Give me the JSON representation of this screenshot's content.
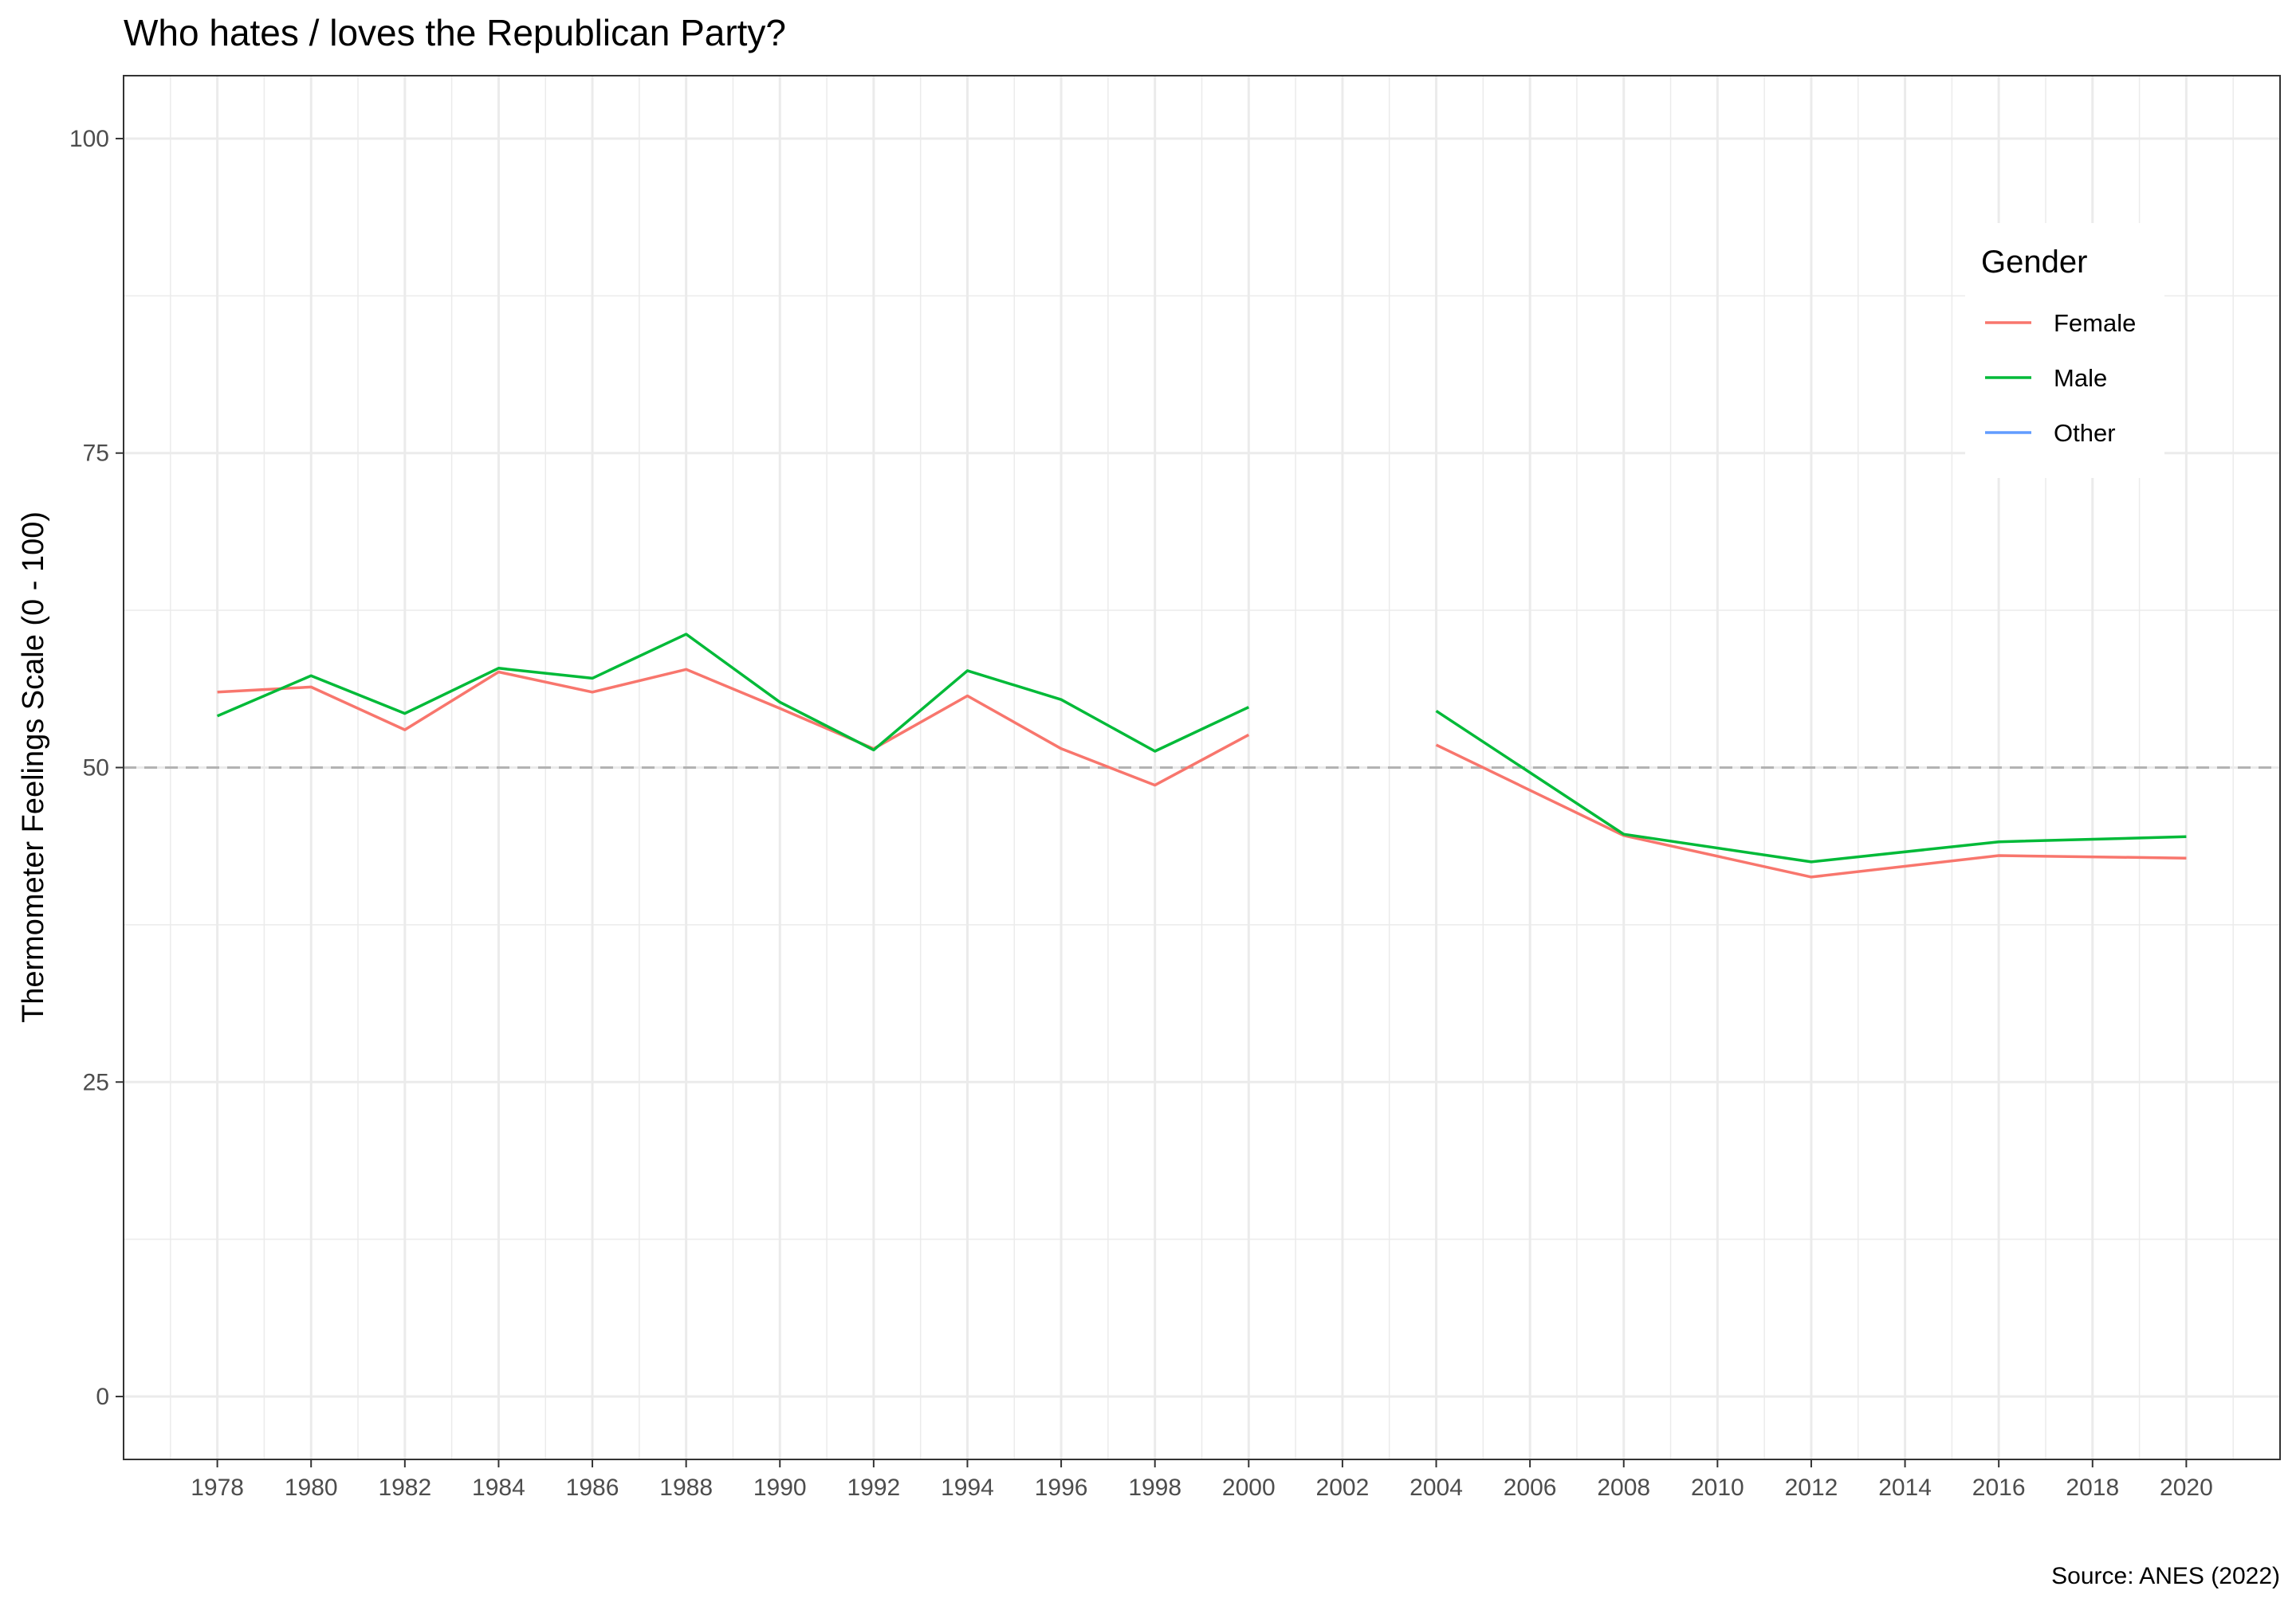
{
  "chart_data": {
    "type": "line",
    "title": "Who hates / loves the Republican Party?",
    "ylabel": "Thermometer Feelings Scale (0 - 100)",
    "xlabel": "",
    "caption": "Source: ANES (2022)",
    "xlim": [
      1976,
      2022
    ],
    "ylim": [
      -5,
      105
    ],
    "x_ticks": [
      1978,
      1980,
      1982,
      1984,
      1986,
      1988,
      1990,
      1992,
      1994,
      1996,
      1998,
      2000,
      2002,
      2004,
      2006,
      2008,
      2010,
      2012,
      2014,
      2016,
      2018,
      2020
    ],
    "y_ticks": [
      0,
      25,
      50,
      75,
      100
    ],
    "reference_line": {
      "y": 50,
      "style": "dashed"
    },
    "legend": {
      "title": "Gender",
      "placement": "top-right"
    },
    "grid": true,
    "series": [
      {
        "name": "Female",
        "color": "#F8766D",
        "points": [
          [
            1978,
            56.0
          ],
          [
            1980,
            56.4
          ],
          [
            1982,
            53.0
          ],
          [
            1984,
            57.6
          ],
          [
            1986,
            56.0
          ],
          [
            1988,
            57.8
          ],
          [
            1990,
            54.7
          ],
          [
            1992,
            51.5
          ],
          [
            1994,
            55.7
          ],
          [
            1996,
            51.5
          ],
          [
            1998,
            48.6
          ],
          [
            2000,
            52.6
          ],
          [
            2002,
            null
          ],
          [
            2004,
            51.8
          ],
          [
            2008,
            44.6
          ],
          [
            2012,
            41.3
          ],
          [
            2016,
            43.0
          ],
          [
            2020,
            42.8
          ]
        ]
      },
      {
        "name": "Male",
        "color": "#00BA38",
        "points": [
          [
            1978,
            54.1
          ],
          [
            1980,
            57.3
          ],
          [
            1982,
            54.3
          ],
          [
            1984,
            57.9
          ],
          [
            1986,
            57.1
          ],
          [
            1988,
            60.6
          ],
          [
            1990,
            55.2
          ],
          [
            1992,
            51.4
          ],
          [
            1994,
            57.7
          ],
          [
            1996,
            55.4
          ],
          [
            1998,
            51.3
          ],
          [
            2000,
            54.8
          ],
          [
            2002,
            null
          ],
          [
            2004,
            54.5
          ],
          [
            2008,
            44.7
          ],
          [
            2012,
            42.5
          ],
          [
            2016,
            44.1
          ],
          [
            2020,
            44.5
          ]
        ]
      },
      {
        "name": "Other",
        "color": "#619CFF",
        "points": []
      }
    ]
  }
}
